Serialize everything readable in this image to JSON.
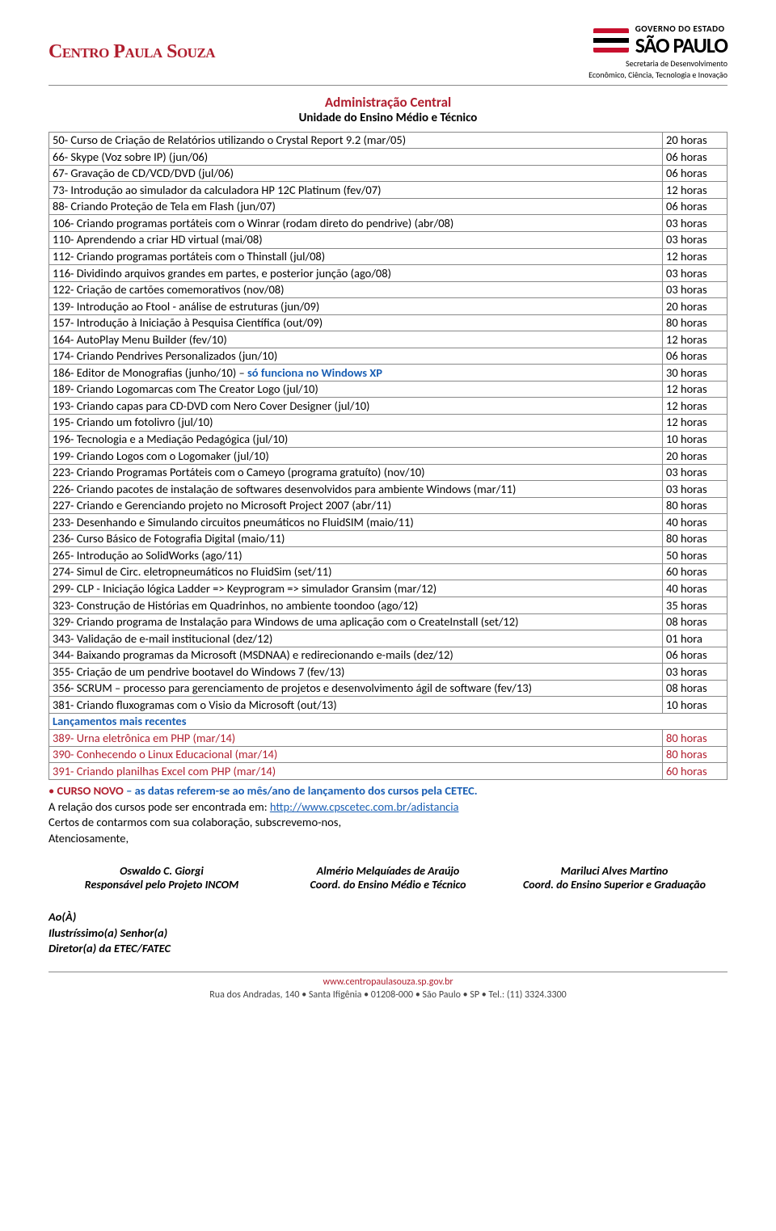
{
  "header": {
    "logo_left": "Centro Paula Souza",
    "gov_line1": "GOVERNO DO ESTADO",
    "gov_line2": "SÃO PAULO",
    "gov_sub1": "Secretaria de Desenvolvimento",
    "gov_sub2": "Econômico, Ciência, Tecnologia e Inovação"
  },
  "title_block": {
    "title": "Administração Central",
    "subtitle": "Unidade do Ensino Médio e Técnico"
  },
  "courses": [
    {
      "desc": "50- Curso de Criação de Relatórios utilizando o Crystal Report 9.2 (mar/05)",
      "hours": "20 horas"
    },
    {
      "desc": "66- Skype (Voz sobre IP) (jun/06)",
      "hours": "06 horas"
    },
    {
      "desc": "67- Gravação de CD/VCD/DVD (jul/06)",
      "hours": "06 horas"
    },
    {
      "desc": "73- Introdução ao simulador da calculadora HP 12C Platinum (fev/07)",
      "hours": "12 horas"
    },
    {
      "desc": "88- Criando Proteção de Tela em Flash (jun/07)",
      "hours": "06 horas"
    },
    {
      "desc": "106- Criando programas portáteis com o Winrar (rodam direto do pendrive) (abr/08)",
      "hours": "03 horas"
    },
    {
      "desc": "110- Aprendendo a criar HD virtual (mai/08)",
      "hours": "03 horas"
    },
    {
      "desc": "112- Criando programas portáteis com o Thinstall (jul/08)",
      "hours": "12 horas"
    },
    {
      "desc": "116- Dividindo arquivos grandes em partes, e posterior junção (ago/08)",
      "hours": "03 horas"
    },
    {
      "desc": "122- Criação de cartões comemorativos (nov/08)",
      "hours": "03 horas"
    },
    {
      "desc": "139- Introdução ao Ftool - análise de estruturas (jun/09)",
      "hours": "20 horas"
    },
    {
      "desc": "157- Introdução à Iniciação à Pesquisa Científica (out/09)",
      "hours": "80 horas"
    },
    {
      "desc": "164- AutoPlay Menu Builder (fev/10)",
      "hours": "12 horas"
    },
    {
      "desc": "174- Criando Pendrives Personalizados (jun/10)",
      "hours": "06 horas"
    },
    {
      "desc_pre": "186- Editor de Monografias (junho/10) – ",
      "desc_blue": "só funciona no Windows XP",
      "hours": "30 horas",
      "has_blue": true
    },
    {
      "desc": "189- Criando Logomarcas com The Creator Logo (jul/10)",
      "hours": "12 horas"
    },
    {
      "desc": "193- Criando capas para CD-DVD com Nero Cover Designer (jul/10)",
      "hours": "12 horas"
    },
    {
      "desc": "195- Criando um fotolivro (jul/10)",
      "hours": "12 horas"
    },
    {
      "desc": "196- Tecnologia e a Mediação Pedagógica (jul/10)",
      "hours": "10 horas"
    },
    {
      "desc": "199- Criando Logos com o Logomaker (jul/10)",
      "hours": "20 horas"
    },
    {
      "desc": "223- Criando Programas Portáteis com o Cameyo (programa gratuíto) (nov/10)",
      "hours": "03 horas"
    },
    {
      "desc": "226- Criando pacotes de instalação de softwares desenvolvidos para ambiente Windows (mar/11)",
      "hours": "03 horas"
    },
    {
      "desc": "227- Criando e Gerenciando projeto no Microsoft Project 2007 (abr/11)",
      "hours": "80 horas"
    },
    {
      "desc": "233- Desenhando e Simulando circuitos pneumáticos no FluidSIM (maio/11)",
      "hours": "40 horas"
    },
    {
      "desc": "236- Curso Básico de Fotografia Digital (maio/11)",
      "hours": "80 horas"
    },
    {
      "desc": "265- Introdução ao SolidWorks (ago/11)",
      "hours": "50 horas"
    },
    {
      "desc": "274- Simul de Circ. eletropneumáticos no FluidSim (set/11)",
      "hours": "60 horas"
    },
    {
      "desc": "299- CLP - Iniciação lógica Ladder => Keyprogram => simulador Gransim (mar/12)",
      "hours": "40 horas"
    },
    {
      "desc": "323- Construção de Histórias em Quadrinhos, no ambiente toondoo (ago/12)",
      "hours": "35 horas"
    },
    {
      "desc": "329- Criando programa de Instalação para Windows de uma aplicação com o CreateInstall (set/12)",
      "hours": "08 horas"
    },
    {
      "desc": "343- Validação de e-mail institucional (dez/12)",
      "hours": "01 hora"
    },
    {
      "desc": "344- Baixando programas da Microsoft (MSDNAA) e redirecionando e-mails (dez/12)",
      "hours": "06 horas"
    },
    {
      "desc": "355- Criação de um pendrive bootavel do Windows 7 (fev/13)",
      "hours": "03 horas"
    },
    {
      "desc": "356- SCRUM – processo para gerenciamento de projetos e desenvolvimento ágil de software (fev/13)",
      "hours": "08 horas"
    },
    {
      "desc": "381- Criando fluxogramas com o Visio da Microsoft (out/13)",
      "hours": "10 horas"
    }
  ],
  "lancamentos_label": "Lançamentos mais recentes",
  "recent": [
    {
      "desc": "389- Urna eletrônica em PHP (mar/14)",
      "hours": "80 horas"
    },
    {
      "desc": "390- Conhecendo o Linux Educacional (mar/14)",
      "hours": "80 horas"
    },
    {
      "desc": "391- Criando planilhas Excel com PHP (mar/14)",
      "hours": "60 horas"
    }
  ],
  "footer_note": {
    "bullet": "•",
    "curso_novo": "CURSO NOVO",
    "dash_blue": " – as datas referem-se ao mês/ano de lançamento dos cursos pela CETEC.",
    "line2_pre": "A relação dos cursos pode ser encontrada em: ",
    "link_text": "http://www.cpscetec.com.br/adistancia",
    "line3": "Certos de contarmos com sua colaboração, subscrevemo-nos,",
    "line4": "Atenciosamente,"
  },
  "signatures": [
    {
      "name": "Oswaldo C. Giorgi",
      "role": "Responsável pelo Projeto INCOM"
    },
    {
      "name": "Almério Melquíades de Araújo",
      "role": "Coord. do Ensino Médio e Técnico"
    },
    {
      "name": "Mariluci Alves Martino",
      "role": "Coord. do Ensino Superior e Graduação"
    }
  ],
  "addressee": {
    "l1": "Ao(À)",
    "l2": "Ilustríssimo(a) Senhor(a)",
    "l3": "Diretor(a) da ETEC/FATEC"
  },
  "page_footer": {
    "site": "www.centropaulasouza.sp.gov.br",
    "address": "Rua dos Andradas, 140 • Santa Ifigênia • 01208-000 • São Paulo • SP • Tel.: (11) 3324.3300"
  }
}
